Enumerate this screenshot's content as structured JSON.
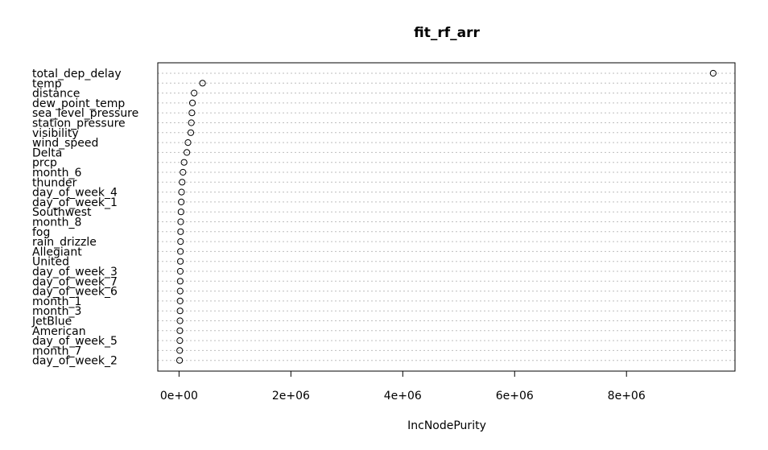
{
  "chart_data": {
    "type": "scatter",
    "title": "fit_rf_arr",
    "xlabel": "IncNodePurity",
    "ylabel": "",
    "xlim": [
      -380000,
      9940000
    ],
    "xticks": [
      0,
      2000000,
      4000000,
      6000000,
      8000000
    ],
    "xtick_labels": [
      "0e+00",
      "2e+06",
      "4e+06",
      "6e+06",
      "8e+06"
    ],
    "grid": "dotted horizontal guide lines",
    "variables": [
      "total_dep_delay",
      "temp",
      "distance",
      "dew_point_temp",
      "sea_level_pressure",
      "station_pressure",
      "visibility",
      "wind_speed",
      "Delta",
      "prcp",
      "month_6",
      "thunder",
      "day_of_week_4",
      "day_of_week_1",
      "Southwest",
      "month_8",
      "fog",
      "rain_drizzle",
      "Allegiant",
      "United",
      "day_of_week_3",
      "day_of_week_7",
      "day_of_week_6",
      "month_1",
      "month_3",
      "JetBlue",
      "American",
      "day_of_week_5",
      "month_7",
      "day_of_week_2"
    ],
    "values": [
      9550000,
      420000,
      270000,
      240000,
      230000,
      220000,
      210000,
      160000,
      140000,
      90000,
      70000,
      55000,
      45000,
      40000,
      35000,
      30000,
      28000,
      27000,
      25000,
      24000,
      22000,
      21000,
      20000,
      19000,
      18000,
      17000,
      15000,
      14000,
      12000,
      10000
    ]
  }
}
